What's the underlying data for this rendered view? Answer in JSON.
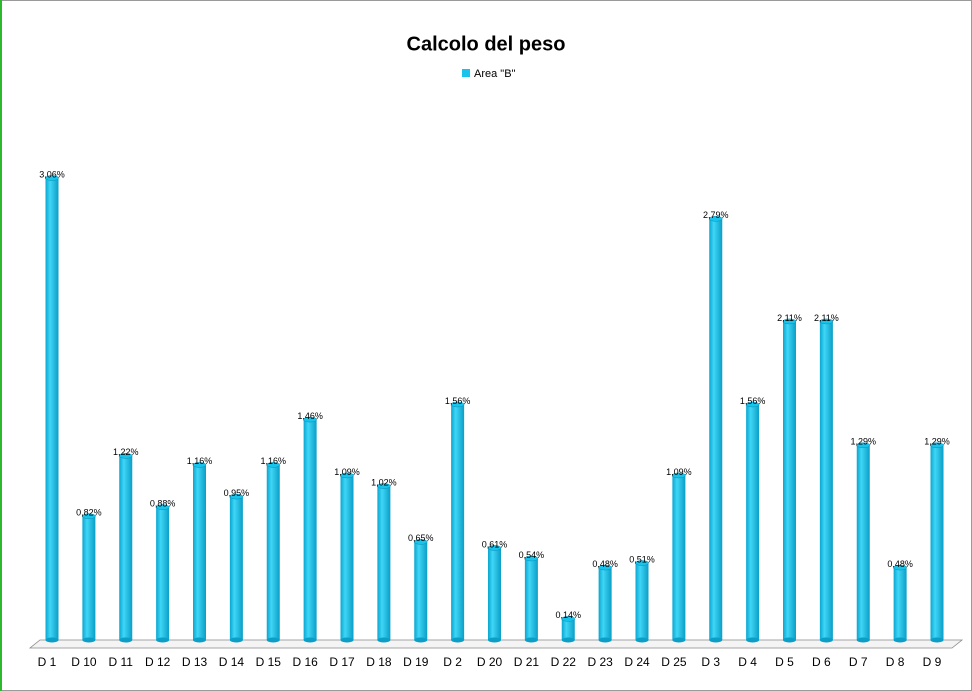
{
  "chart_data": {
    "type": "bar",
    "title": "Calcolo del peso",
    "categories": [
      "D 1",
      "D 10",
      "D 11",
      "D 12",
      "D 13",
      "D 14",
      "D 15",
      "D 16",
      "D 17",
      "D 18",
      "D 19",
      "D 2",
      "D 20",
      "D 21",
      "D 22",
      "D 23",
      "D 24",
      "D 25",
      "D 3",
      "D 4",
      "D 5",
      "D 6",
      "D 7",
      "D 8",
      "D 9"
    ],
    "series": [
      {
        "name": "Area \"B\"",
        "color": "#18c4ec",
        "values": [
          3.06,
          0.82,
          1.22,
          0.88,
          1.16,
          0.95,
          1.16,
          1.46,
          1.09,
          1.02,
          0.65,
          1.56,
          0.61,
          0.54,
          0.14,
          0.48,
          0.51,
          1.09,
          2.79,
          1.56,
          2.11,
          2.11,
          1.29,
          0.48,
          1.29
        ],
        "value_labels": [
          "3,06%",
          "0,82%",
          "1,22%",
          "0,88%",
          "1,16%",
          "0,95%",
          "1,16%",
          "1,46%",
          "1,09%",
          "1,02%",
          "0,65%",
          "1,56%",
          "0,61%",
          "0,54%",
          "0,14%",
          "0,48%",
          "0,51%",
          "1,09%",
          "2,79%",
          "1,56%",
          "2,11%",
          "2,11%",
          "1,29%",
          "0,48%",
          "1,29%"
        ]
      }
    ],
    "legend": "top"
  }
}
